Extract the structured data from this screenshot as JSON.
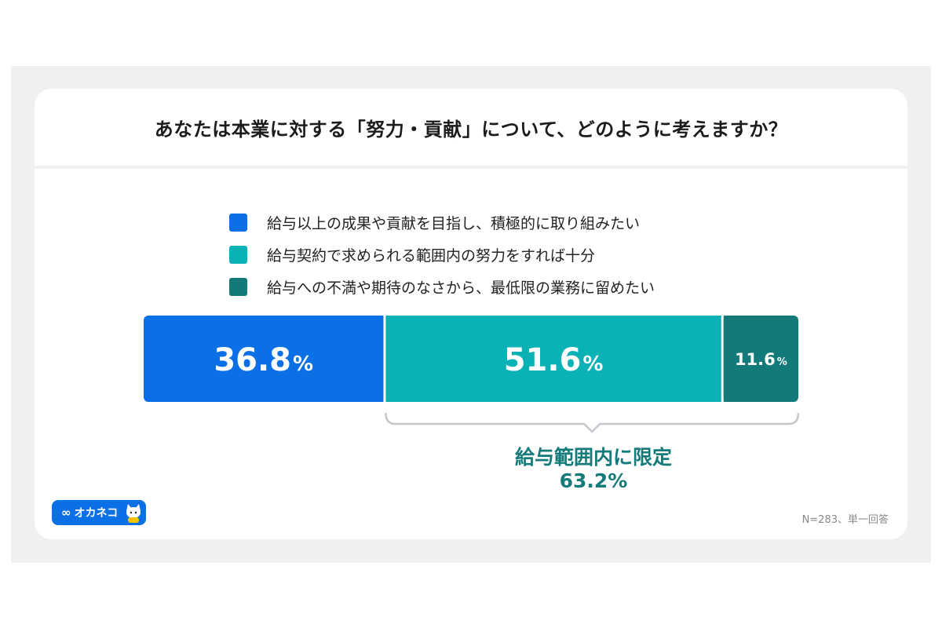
{
  "title": "あなたは本業に対する「努力・貢献」について、どのように考えますか？",
  "legend": [
    {
      "label": "給与以上の成果や貢献を目指し、積極的に取り組みたい",
      "color": "#0b6fe6"
    },
    {
      "label": "給与契約で求められる範囲内の努力をすれば十分",
      "color": "#0ab2b5"
    },
    {
      "label": "給与への不満や期待のなさから、最低限の業務に留めたい",
      "color": "#137a7a"
    }
  ],
  "chart_data": {
    "type": "bar",
    "orientation": "horizontal-stacked-100",
    "title": "あなたは本業に対する「努力・貢献」について、どのように考えますか？",
    "series": [
      {
        "name": "給与以上の成果や貢献を目指し、積極的に取り組みたい",
        "value": 36.8,
        "label": "36.8",
        "unit": "%",
        "color": "#0b6fe6"
      },
      {
        "name": "給与契約で求められる範囲内の努力をすれば十分",
        "value": 51.6,
        "label": "51.6",
        "unit": "%",
        "color": "#0ab2b5"
      },
      {
        "name": "給与への不満や期待のなさから、最低限の業務に留めたい",
        "value": 11.6,
        "label": "11.6",
        "unit": "%",
        "color": "#137a7a"
      }
    ],
    "annotation": {
      "label": "給与範囲内に限定",
      "value": "63.2%",
      "spans_series": [
        1,
        2
      ]
    }
  },
  "brand": {
    "name": "オカネコ",
    "mark": "∞"
  },
  "note": "N=283、単一回答"
}
